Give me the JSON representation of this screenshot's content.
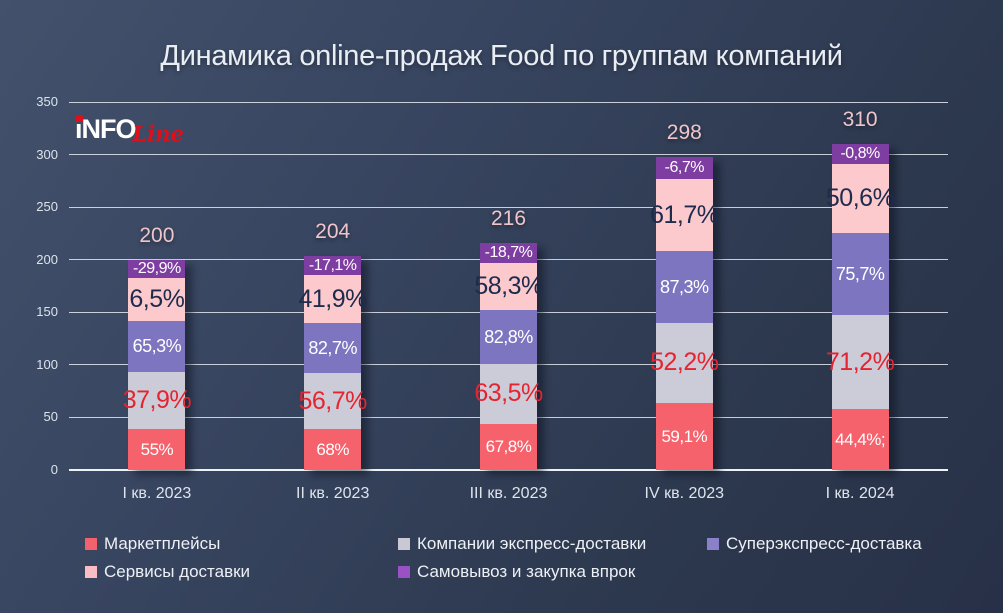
{
  "title": "Динамика online-продаж Food по группам компаний",
  "logo": {
    "text_main": "iNFO",
    "text_script": "Line"
  },
  "colors": {
    "background_top": "#43516c",
    "background_bottom": "#273047",
    "title_text": "#e9eef5",
    "axis_text": "#dce3ec",
    "gridline": "#e4e9f1",
    "total_label_text": "#eec5ca",
    "logo_red": "#e0101a",
    "logo_white": "#ffffff"
  },
  "chart_data": {
    "type": "stacked-bar",
    "title": "Динамика online-продаж Food по группам компаний",
    "categories": [
      "I кв. 2023",
      "II кв. 2023",
      "III кв. 2023",
      "IV кв. 2023",
      "I кв. 2024"
    ],
    "totals": [
      200,
      204,
      216,
      298,
      310
    ],
    "y_axis": {
      "min": 0,
      "max": 350,
      "step": 50,
      "ticks": [
        0,
        50,
        100,
        150,
        200,
        250,
        300,
        350
      ]
    },
    "grid": true,
    "legend_position": "bottom",
    "series": [
      {
        "name": "Маркетплейсы",
        "color": "#f5626c",
        "legend_color": "#f2626c",
        "label_color": "#ffffff",
        "values": [
          39,
          39,
          44,
          64,
          58
        ],
        "growth_labels": [
          "55%",
          "68%",
          "67,8%",
          "59,1%",
          "44,4%;"
        ]
      },
      {
        "name": "Компании экспресс-доставки",
        "color": "#ccccd8",
        "legend_color": "#c9c9d6",
        "label_color": "#e62430",
        "values": [
          54,
          53,
          57,
          76,
          89
        ],
        "growth_labels": [
          "37,9%",
          "56,7%",
          "63,5%",
          "52,2%",
          "71,2%"
        ]
      },
      {
        "name": "Суперэкспресс-доставка",
        "color": "#7d75bf",
        "legend_color": "#8a82c8",
        "label_color": "#ffffff",
        "values": [
          49,
          48,
          51,
          68,
          78
        ],
        "growth_labels": [
          "65,3%",
          "82,7%",
          "82,8%",
          "87,3%",
          "75,7%"
        ]
      },
      {
        "name": "Сервисы доставки",
        "color": "#fcc9cd",
        "legend_color": "#f9bdc3",
        "label_color": "#1d2b4d",
        "values": [
          41,
          45,
          45,
          69,
          66
        ],
        "growth_labels": [
          "6,5%",
          "41,9%",
          "58,3%",
          "61,7%",
          "50,6%"
        ]
      },
      {
        "name": "Самовывоз и закупка впрок",
        "color": "#7e3da0",
        "legend_color": "#9b51c6",
        "label_color": "#ffffff",
        "values": [
          17,
          19,
          19,
          21,
          19
        ],
        "growth_labels": [
          "-29,9%",
          "-17,1%",
          "-18,7%",
          "-6,7%",
          "-0,8%"
        ]
      }
    ]
  }
}
